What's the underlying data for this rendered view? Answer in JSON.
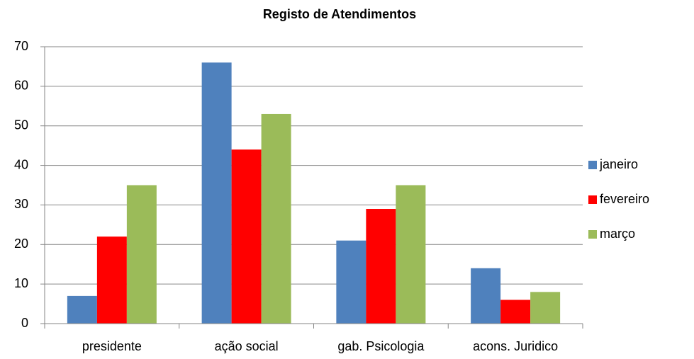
{
  "chart_data": {
    "type": "bar",
    "title": "Registo de Atendimentos",
    "categories": [
      "presidente",
      "ação social",
      "gab. Psicologia",
      "acons. Juridico"
    ],
    "series": [
      {
        "name": "janeiro",
        "color": "#4f81bd",
        "values": [
          7,
          66,
          21,
          14
        ]
      },
      {
        "name": "fevereiro",
        "color": "#ff0000",
        "values": [
          22,
          44,
          29,
          6
        ]
      },
      {
        "name": "março",
        "color": "#9bbb59",
        "values": [
          35,
          53,
          35,
          8
        ]
      }
    ],
    "ylim": [
      0,
      70
    ],
    "yticks": [
      0,
      10,
      20,
      30,
      40,
      50,
      60,
      70
    ],
    "grid": true,
    "legend": "right"
  }
}
